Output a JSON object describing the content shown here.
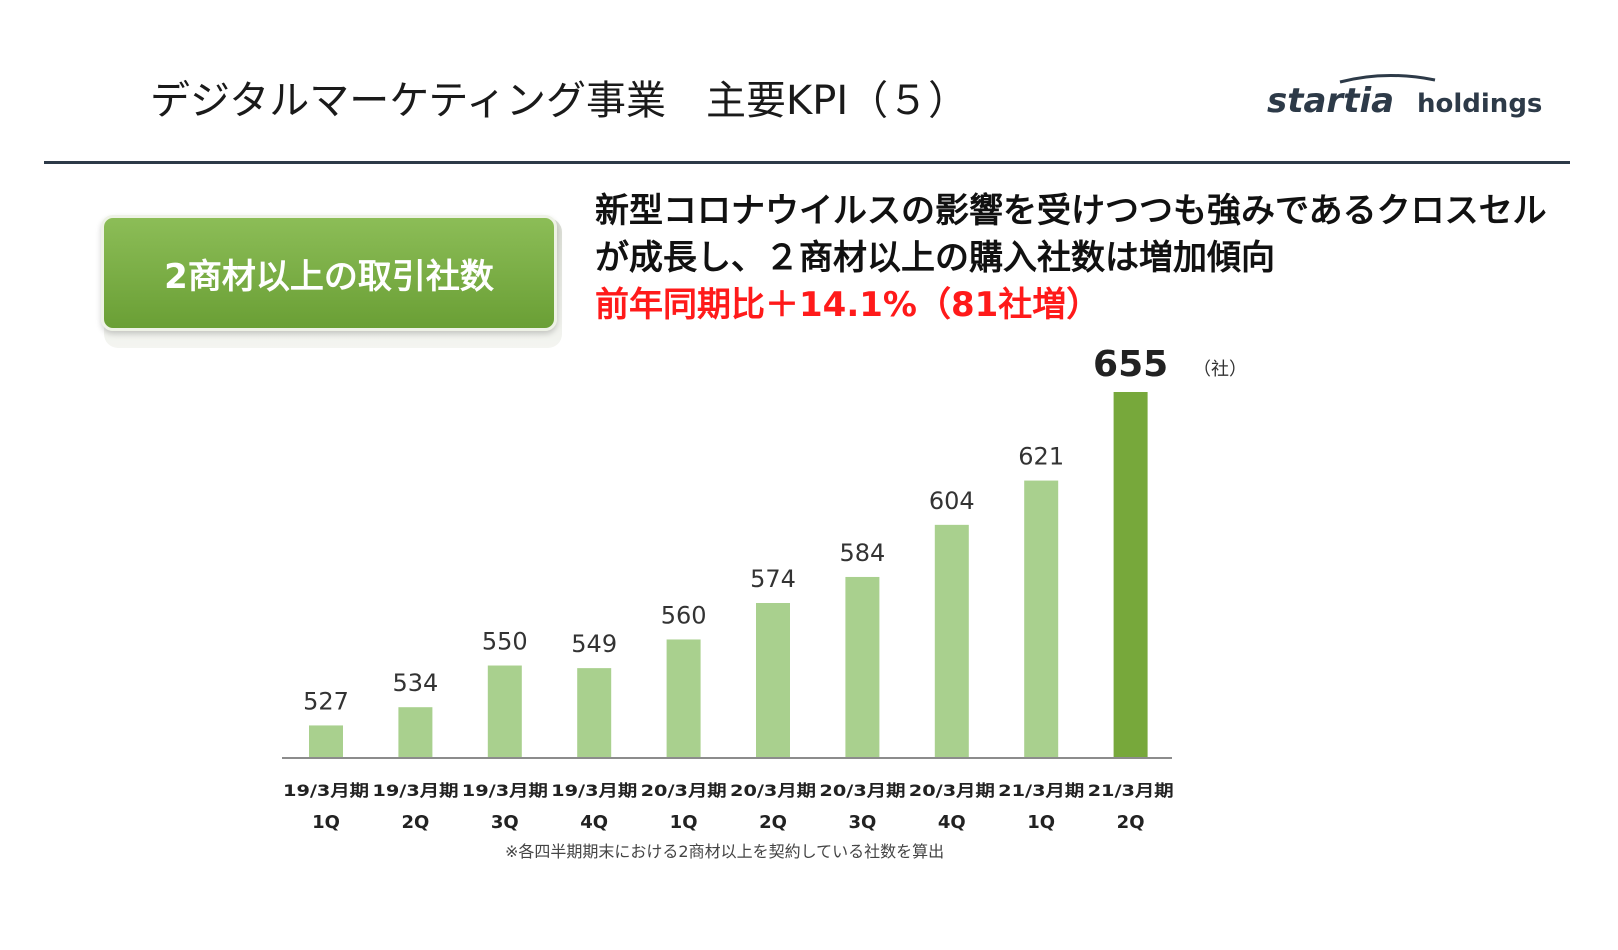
{
  "header": {
    "title": "デジタルマーケティング事業　主要KPI（５）",
    "logo_main": "startia",
    "logo_sub": "holdings"
  },
  "badge": {
    "label": "2商材以上の取引社数"
  },
  "headline": {
    "line1": "新型コロナウイルスの影響を受けつつも強みであるクロスセル",
    "line2": "が成長し、２商材以上の購入社数は増加傾向",
    "line3": "前年同期比＋14.1%（81社増）"
  },
  "chart_data": {
    "type": "bar",
    "categories": [
      [
        "19/3月期",
        "1Q"
      ],
      [
        "19/3月期",
        "2Q"
      ],
      [
        "19/3月期",
        "3Q"
      ],
      [
        "19/3月期",
        "4Q"
      ],
      [
        "20/3月期",
        "1Q"
      ],
      [
        "20/3月期",
        "2Q"
      ],
      [
        "20/3月期",
        "3Q"
      ],
      [
        "20/3月期",
        "4Q"
      ],
      [
        "21/3月期",
        "1Q"
      ],
      [
        "21/3月期",
        "2Q"
      ]
    ],
    "values": [
      527,
      534,
      550,
      549,
      560,
      574,
      584,
      604,
      621,
      655
    ],
    "unit_label": "（社）",
    "ylim": [
      500,
      655
    ],
    "highlight_index": 9,
    "colors": {
      "bar": "#a9d08e",
      "highlight": "#77a83b",
      "axis": "#8c8c8c"
    }
  },
  "footnote": "※各四半期期末における2商材以上を契約している社数を算出"
}
